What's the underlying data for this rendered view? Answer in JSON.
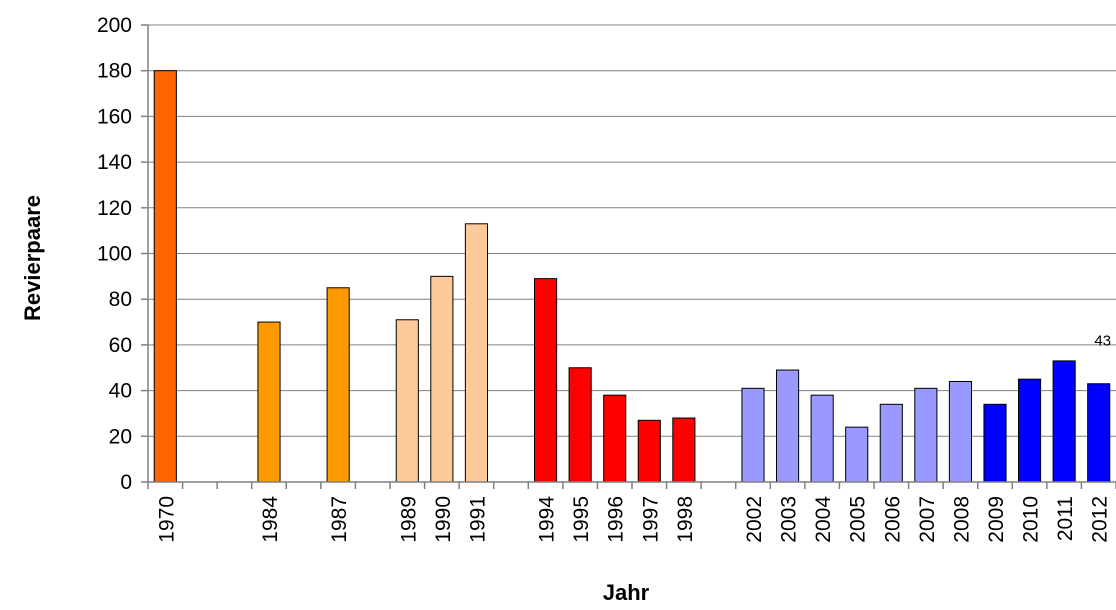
{
  "chart_data": {
    "type": "bar",
    "xlabel": "Jahr",
    "ylabel": "Revierpaare",
    "ylim": [
      0,
      200
    ],
    "yticks": [
      0,
      20,
      40,
      60,
      80,
      100,
      120,
      140,
      160,
      180,
      200
    ],
    "grid": true,
    "categories": [
      "1970",
      "",
      "",
      "1984",
      "",
      "1987",
      "",
      "1989",
      "1990",
      "1991",
      "",
      "1994",
      "1995",
      "1996",
      "1997",
      "1998",
      "",
      "2002",
      "2003",
      "2004",
      "2005",
      "2006",
      "2007",
      "2008",
      "2009",
      "2010",
      "2011",
      "2012"
    ],
    "values": [
      180,
      null,
      null,
      70,
      null,
      85,
      null,
      71,
      90,
      113,
      null,
      89,
      50,
      38,
      27,
      28,
      null,
      41,
      49,
      38,
      24,
      34,
      41,
      44,
      34,
      45,
      53,
      43
    ],
    "colors": [
      "#ff6600",
      null,
      null,
      "#ff9900",
      null,
      "#ff9900",
      null,
      "#fcc99a",
      "#fcc99a",
      "#fcc99a",
      null,
      "#ff0000",
      "#ff0000",
      "#ff0000",
      "#ff0000",
      "#ff0000",
      null,
      "#9999ff",
      "#9999ff",
      "#9999ff",
      "#9999ff",
      "#9999ff",
      "#9999ff",
      "#9999ff",
      "#0000ff",
      "#0000ff",
      "#0000ff",
      "#0000ff"
    ],
    "data_labels": [
      {
        "category": "2012",
        "text": "43"
      }
    ]
  }
}
